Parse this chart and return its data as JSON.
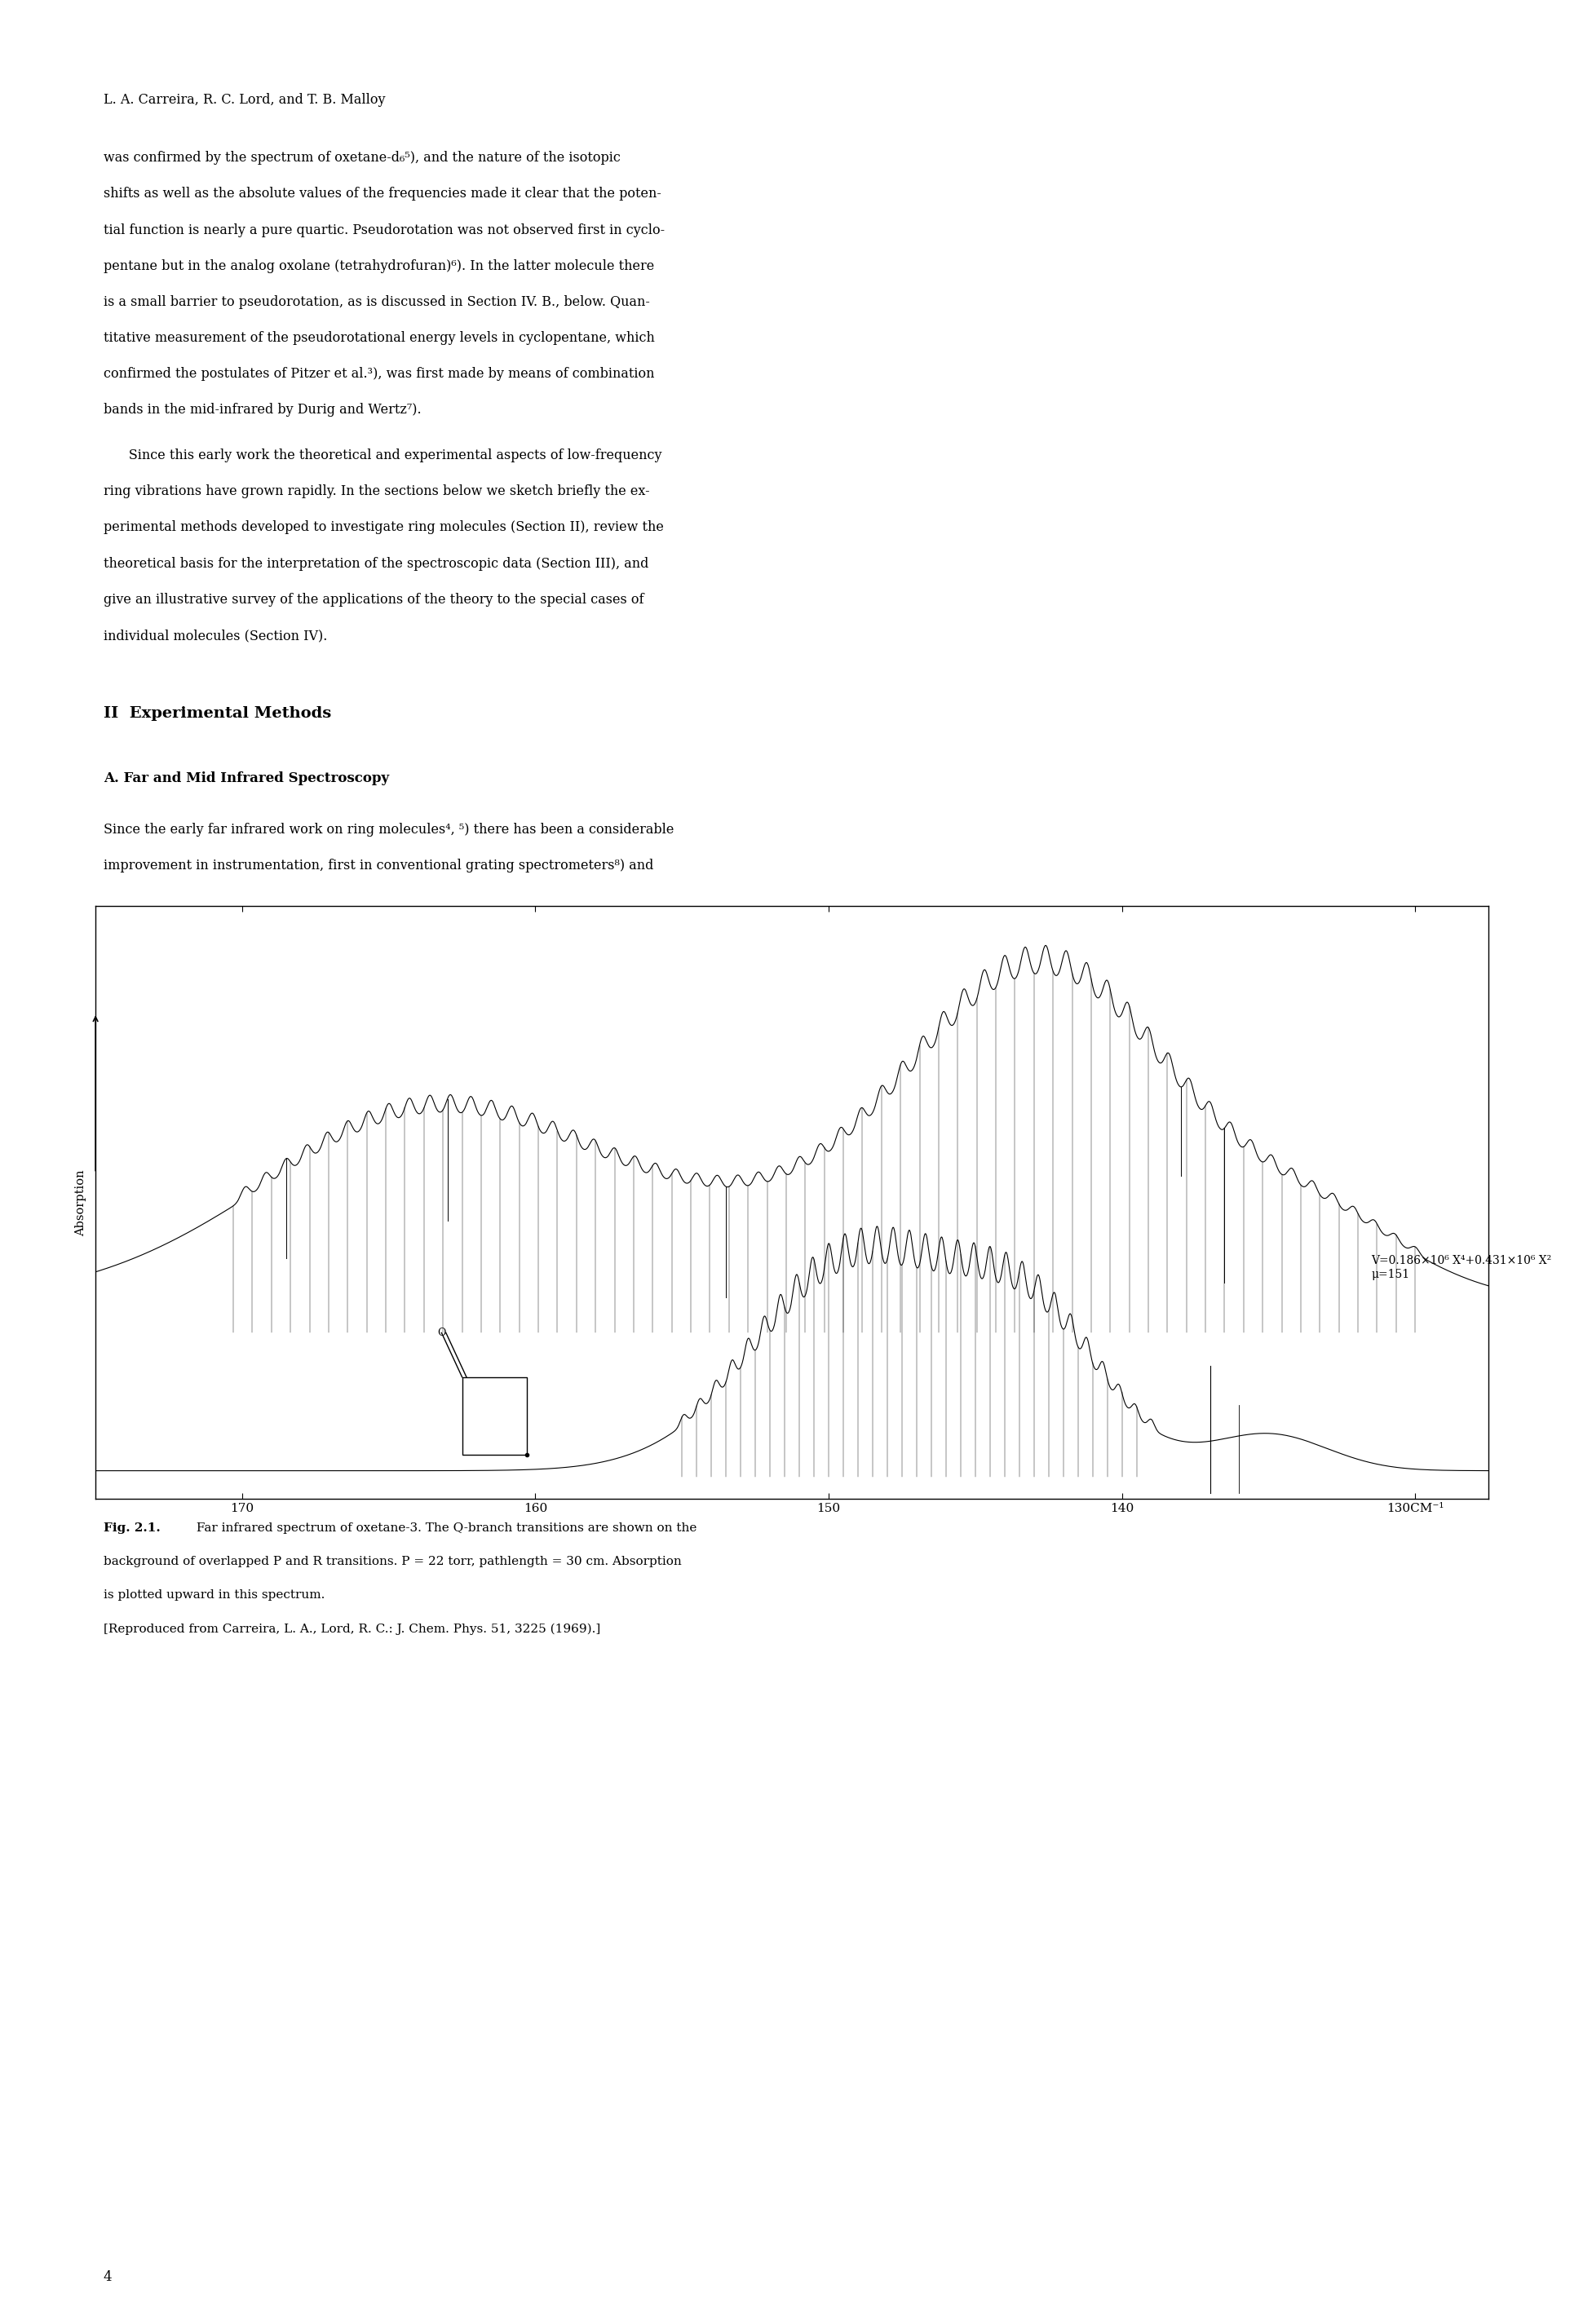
{
  "page_width": 19.52,
  "page_height": 28.5,
  "bg_color": "#ffffff",
  "header_text": "L. A. Carreira, R. C. Lord, and T. B. Malloy",
  "para1_lines": [
    "was confirmed by the spectrum of oxetane-d₆⁵), and the nature of the isotopic",
    "shifts as well as the absolute values of the frequencies made it clear that the poten-",
    "tial function is nearly a pure quartic. Pseudorotation was not observed first in cyclo-",
    "pentane but in the analog oxolane (tetrahydrofuran)⁶). In the latter molecule there",
    "is a small barrier to pseudorotation, as is discussed in Section IV. B., below. Quan-",
    "titative measurement of the pseudorotational energy levels in cyclopentane, which",
    "confirmed the postulates of Pitzer et al.³), was first made by means of combination",
    "bands in the mid-infrared by Durig and Wertz⁷)."
  ],
  "para2_lines": [
    "      Since this early work the theoretical and experimental aspects of low-frequency",
    "ring vibrations have grown rapidly. In the sections below we sketch briefly the ex-",
    "perimental methods developed to investigate ring molecules (Section II), review the",
    "theoretical basis for the interpretation of the spectroscopic data (Section III), and",
    "give an illustrative survey of the applications of the theory to the special cases of",
    "individual molecules (Section IV)."
  ],
  "section_title": "II  Experimental Methods",
  "subsection_title": "A. Far and Mid Infrared Spectroscopy",
  "para3_lines": [
    "Since the early far infrared work on ring molecules⁴, ⁵) there has been a considerable",
    "improvement in instrumentation, first in conventional grating spectrometers⁸) and"
  ],
  "caption_bold": "Fig. 2.1.",
  "caption_rest": " Far infrared spectrum of oxetane-3. The Q-branch transitions are shown on the",
  "caption_line2": "background of overlapped P and R transitions. P = 22 torr, pathlength = 30 cm. Absorption",
  "caption_line3": "is plotted upward in this spectrum.",
  "caption_line4": "[Reproduced from Carreira, L. A., Lord, R. C.: J. Chem. Phys. 51, 3225 (1969).]",
  "page_number": "4",
  "annotation_line1": "V=0.186×10⁶ X⁴+0.431×10⁶ X²",
  "annotation_line2": "μ=151",
  "x_tick_labels": [
    "170",
    "160",
    "150",
    "140",
    "130CM⁻¹"
  ],
  "y_label": "Absorption",
  "text_fontsize": 11.5,
  "header_fontsize": 11.5,
  "section_fontsize": 14,
  "subsection_fontsize": 12,
  "caption_fontsize": 11,
  "page_num_fontsize": 12
}
